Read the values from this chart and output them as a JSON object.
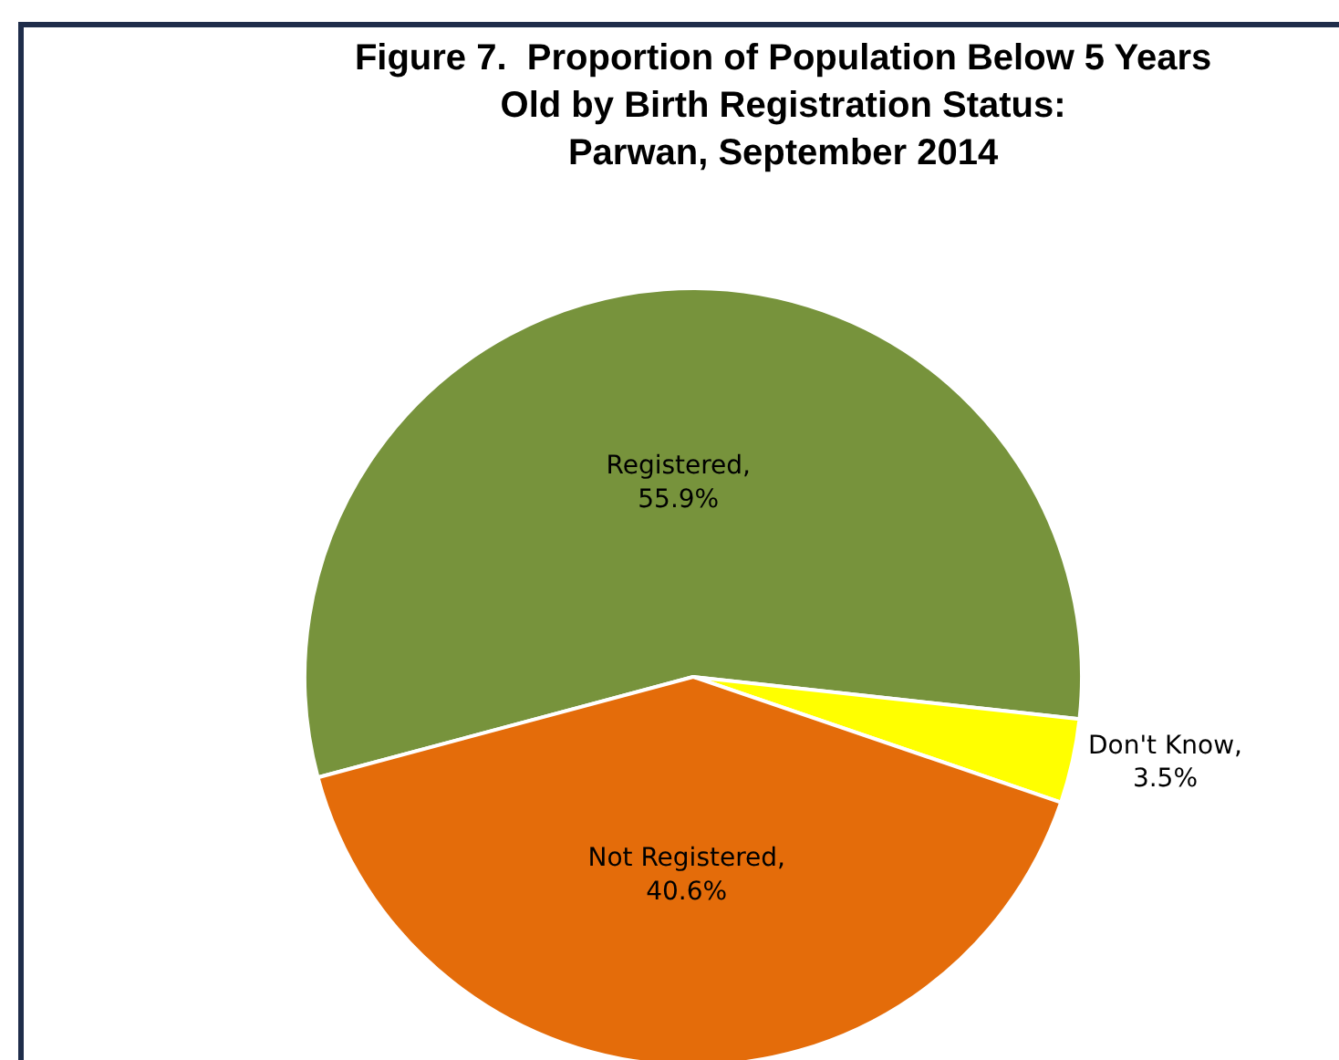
{
  "chart_data": {
    "type": "pie",
    "title": "Figure 7.  Proportion of Population Below 5 Years\nOld by Birth Registration Status:\nParwan, September 2014",
    "categories": [
      "Registered",
      "Don't Know",
      "Not Registered"
    ],
    "values": [
      55.9,
      3.5,
      40.6
    ],
    "colors": [
      "#77933c",
      "#ffff00",
      "#e46c0a"
    ],
    "value_labels": [
      ",\n55.9%",
      ",\n3.5%",
      ",\n40.6%"
    ],
    "legend": false
  }
}
